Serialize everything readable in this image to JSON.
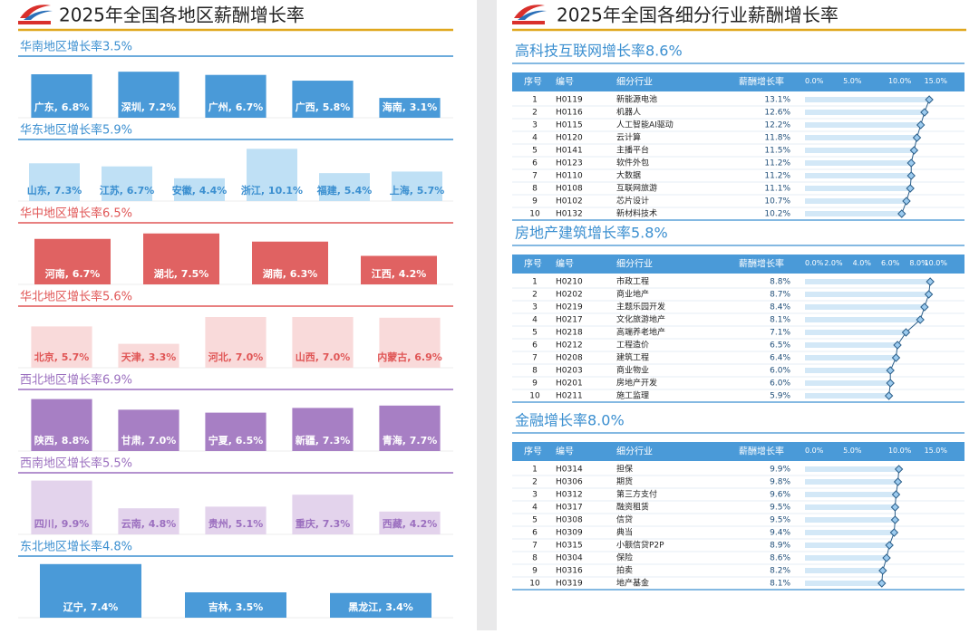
{
  "left": {
    "title": "2025年全国各地区薪酬增长率",
    "regions": [
      {
        "title": "华南地区增长率3.5%",
        "color": "#3b8fd0",
        "bar_color": "#4a9ad8",
        "label_color": "#ffffff",
        "ylim": [
          0,
          8.5
        ],
        "values": [
          6.8,
          7.2,
          6.7,
          5.8,
          3.1
        ],
        "value_labels": [
          "广东, 6.8%",
          "深圳, 7.2%",
          "广州, 6.7%",
          "广西, 5.8%",
          "海南, 3.1%"
        ]
      },
      {
        "title": "华东地区增长率5.9%",
        "color": "#3b8fd0",
        "bar_color": "#bfe0f5",
        "label_color": "#3b8fd0",
        "ylim": [
          0,
          10.5
        ],
        "values": [
          7.3,
          6.7,
          4.4,
          10.1,
          5.4,
          5.7
        ],
        "value_labels": [
          "山东, 7.3%",
          "江苏, 6.7%",
          "安徽, 4.4%",
          "浙江, 10.1%",
          "福建, 5.4%",
          "上海, 5.7%"
        ]
      },
      {
        "title": "华中地区增长率6.5%",
        "color": "#e05656",
        "bar_color": "#e06262",
        "label_color": "#ffffff",
        "ylim": [
          0,
          8
        ],
        "values": [
          6.7,
          7.5,
          6.3,
          4.2
        ],
        "value_labels": [
          "河南, 6.7%",
          "湖北, 7.5%",
          "湖南, 6.3%",
          "江西, 4.2%"
        ]
      },
      {
        "title": "华北地区增长率5.6%",
        "color": "#e05656",
        "bar_color": "#f9dada",
        "label_color": "#e05656",
        "ylim": [
          0,
          7.5
        ],
        "values": [
          5.7,
          3.3,
          7.0,
          7.0,
          6.9
        ],
        "value_labels": [
          "北京, 5.7%",
          "天津, 3.3%",
          "河北, 7.0%",
          "山西, 7.0%",
          "内蒙古, 6.9%"
        ]
      },
      {
        "title": "西北地区增长率6.9%",
        "color": "#9b6fbf",
        "bar_color": "#a77fc4",
        "label_color": "#ffffff",
        "ylim": [
          0,
          9.2
        ],
        "values": [
          8.8,
          7.0,
          6.5,
          7.3,
          7.7
        ],
        "value_labels": [
          "陕西, 8.8%",
          "甘肃, 7.0%",
          "宁夏, 6.5%",
          "新疆, 7.3%",
          "青海, 7.7%"
        ]
      },
      {
        "title": "西南地区增长率5.5%",
        "color": "#9b6fbf",
        "bar_color": "#e3d3ec",
        "label_color": "#9b6fbf",
        "ylim": [
          0,
          10
        ],
        "values": [
          9.9,
          4.8,
          5.1,
          7.3,
          4.2
        ],
        "value_labels": [
          "四川, 9.9%",
          "云南, 4.8%",
          "贵州, 5.1%",
          "重庆, 7.3%",
          "西藏, 4.2%"
        ]
      },
      {
        "title": "东北地区增长率4.8%",
        "color": "#3b8fd0",
        "bar_color": "#4a9ad8",
        "label_color": "#ffffff",
        "ylim": [
          0,
          7.5
        ],
        "values": [
          7.4,
          3.5,
          3.4
        ],
        "value_labels": [
          "辽宁, 7.4%",
          "吉林, 3.5%",
          "黑龙江, 3.4%"
        ]
      }
    ]
  },
  "right": {
    "title": "2025年全国各细分行业薪酬增长率",
    "tables": [
      {
        "title": "高科技互联网增长率8.6%",
        "columns": [
          "序号",
          "编号",
          "细分行业",
          "薪酬增长率"
        ],
        "xlim": [
          0,
          15
        ],
        "xticks": [
          {
            "value": 0,
            "label": "0.0%"
          },
          {
            "value": 5,
            "label": "5.0%"
          },
          {
            "value": 10,
            "label": "10.0%"
          },
          {
            "value": 15,
            "label": "15.0%"
          }
        ],
        "rows": [
          [
            1,
            "H0119",
            "新能源电池"
          ],
          [
            2,
            "H0116",
            "机器人"
          ],
          [
            3,
            "H0115",
            "人工智能AI驱动"
          ],
          [
            4,
            "H0120",
            "云计算"
          ],
          [
            5,
            "H0141",
            "主播平台"
          ],
          [
            6,
            "H0123",
            "软件外包"
          ],
          [
            7,
            "H0110",
            "大数据"
          ],
          [
            8,
            "H0108",
            "互联网旅游"
          ],
          [
            9,
            "H0102",
            "芯片设计"
          ],
          [
            10,
            "H0132",
            "新材料技术"
          ]
        ],
        "values": [
          13.1,
          12.6,
          12.2,
          11.8,
          11.5,
          11.2,
          11.2,
          11.1,
          10.7,
          10.2
        ],
        "value_labels": [
          "13.1%",
          "12.6%",
          "12.2%",
          "11.8%",
          "11.5%",
          "11.2%",
          "11.2%",
          "11.1%",
          "10.7%",
          "10.2%"
        ]
      },
      {
        "title": "房地产建筑增长率5.8%",
        "columns": [
          "序号",
          "编号",
          "细分行业",
          "薪酬增长率"
        ],
        "xlim": [
          0,
          10
        ],
        "xticks": [
          {
            "value": 0,
            "label": "0.0%"
          },
          {
            "value": 2,
            "label": "2.0%"
          },
          {
            "value": 4,
            "label": "4.0%"
          },
          {
            "value": 6,
            "label": "6.0%"
          },
          {
            "value": 8,
            "label": "8.0%"
          },
          {
            "value": 10,
            "label": "10.0%"
          }
        ],
        "rows": [
          [
            1,
            "H0210",
            "市政工程"
          ],
          [
            2,
            "H0202",
            "商业地产"
          ],
          [
            3,
            "H0219",
            "主题乐园开发"
          ],
          [
            4,
            "H0217",
            "文化旅游地产"
          ],
          [
            5,
            "H0218",
            "高端养老地产"
          ],
          [
            6,
            "H0212",
            "工程造价"
          ],
          [
            7,
            "H0208",
            "建筑工程"
          ],
          [
            8,
            "H0203",
            "商业物业"
          ],
          [
            9,
            "H0201",
            "房地产开发"
          ],
          [
            10,
            "H0211",
            "施工监理"
          ]
        ],
        "values": [
          8.8,
          8.7,
          8.4,
          8.1,
          7.1,
          6.5,
          6.4,
          6.0,
          6.0,
          5.9
        ],
        "value_labels": [
          "8.8%",
          "8.7%",
          "8.4%",
          "8.1%",
          "7.1%",
          "6.5%",
          "6.4%",
          "6.0%",
          "6.0%",
          "5.9%"
        ]
      },
      {
        "title": "金融增长率8.0%",
        "columns": [
          "序号",
          "编号",
          "细分行业",
          "薪酬增长率"
        ],
        "xlim": [
          0,
          15
        ],
        "xticks": [
          {
            "value": 0,
            "label": "0.0%"
          },
          {
            "value": 5,
            "label": "5.0%"
          },
          {
            "value": 10,
            "label": "10.0%"
          },
          {
            "value": 15,
            "label": "15.0%"
          }
        ],
        "rows": [
          [
            1,
            "H0314",
            "担保"
          ],
          [
            2,
            "H0306",
            "期货"
          ],
          [
            3,
            "H0312",
            "第三方支付"
          ],
          [
            4,
            "H0317",
            "融资租赁"
          ],
          [
            5,
            "H0308",
            "信贷"
          ],
          [
            6,
            "H0309",
            "典当"
          ],
          [
            7,
            "H0315",
            "小额信贷P2P"
          ],
          [
            8,
            "H0304",
            "保险"
          ],
          [
            9,
            "H0316",
            "拍卖"
          ],
          [
            10,
            "H0319",
            "地产基金"
          ]
        ],
        "values": [
          9.9,
          9.8,
          9.6,
          9.5,
          9.5,
          9.4,
          8.9,
          8.6,
          8.2,
          8.1
        ],
        "value_labels": [
          "9.9%",
          "9.8%",
          "9.6%",
          "9.5%",
          "9.5%",
          "9.4%",
          "8.9%",
          "8.6%",
          "8.2%",
          "8.1%"
        ]
      }
    ]
  }
}
